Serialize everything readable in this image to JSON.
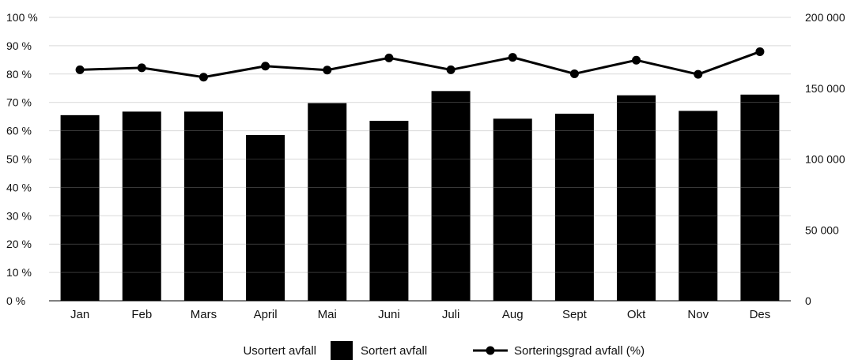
{
  "chart_data": {
    "type": "bar",
    "categories": [
      "Jan",
      "Feb",
      "Mars",
      "April",
      "Mai",
      "Juni",
      "Juli",
      "Aug",
      "Sept",
      "Okt",
      "Nov",
      "Des"
    ],
    "series": [
      {
        "name": "Usortert avfall",
        "type": "bar",
        "axis": "right",
        "values": [
          0,
          0,
          0,
          0,
          0,
          0,
          0,
          0,
          0,
          0,
          0,
          0
        ],
        "color": "#ffffff"
      },
      {
        "name": "Sortert avfall",
        "type": "bar",
        "axis": "right",
        "values": [
          131000,
          133500,
          133500,
          117000,
          139500,
          127000,
          148000,
          128500,
          132000,
          145000,
          134000,
          145500
        ],
        "color": "#000000"
      },
      {
        "name": "Sorteringsgrad avfall (%)",
        "type": "line",
        "axis": "left",
        "values": [
          81.5,
          82.2,
          78.9,
          82.8,
          81.4,
          85.7,
          81.5,
          85.9,
          80.1,
          84.9,
          79.9,
          87.9
        ],
        "color": "#000000"
      }
    ],
    "y_left": {
      "ylim": [
        0,
        100
      ],
      "ticks": [
        0,
        10,
        20,
        30,
        40,
        50,
        60,
        70,
        80,
        90,
        100
      ],
      "tick_labels": [
        "0 %",
        "10 %",
        "20 %",
        "30 %",
        "40 %",
        "50 %",
        "60 %",
        "70 %",
        "80 %",
        "90 %",
        "100 %"
      ]
    },
    "y_right": {
      "ylim": [
        0,
        200000
      ],
      "ticks": [
        0,
        50000,
        100000,
        150000,
        200000
      ],
      "tick_labels": [
        "0",
        "50 000",
        "100 000",
        "150 000",
        "200 000"
      ]
    },
    "grid": true,
    "legend_position": "bottom",
    "title": "",
    "xlabel": "",
    "ylabel": ""
  }
}
